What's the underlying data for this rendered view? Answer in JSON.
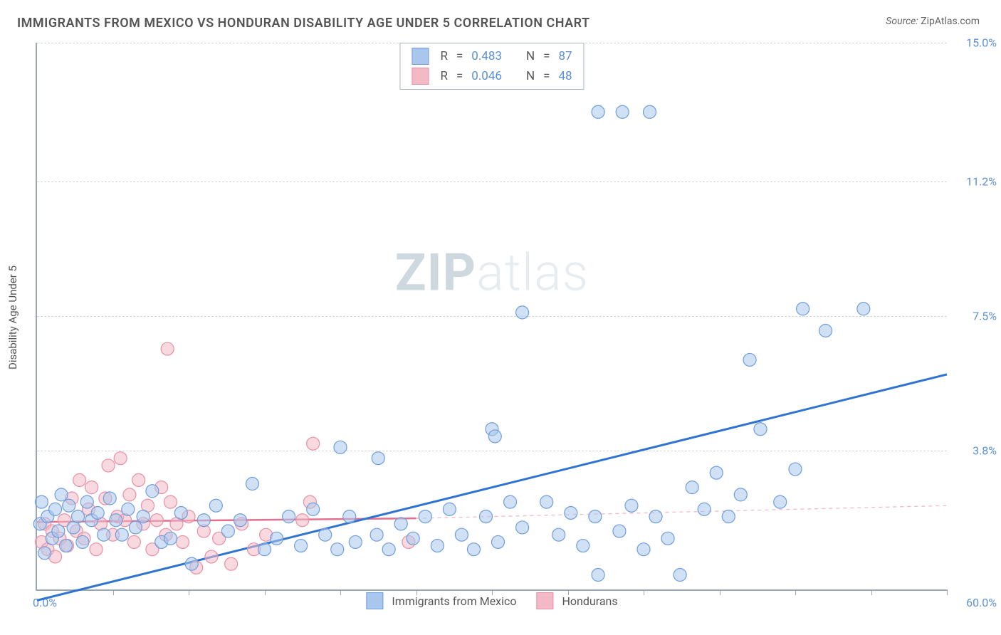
{
  "title": "IMMIGRANTS FROM MEXICO VS HONDURAN DISABILITY AGE UNDER 5 CORRELATION CHART",
  "source_label": "Source:",
  "source_value": "ZipAtlas.com",
  "ylabel": "Disability Age Under 5",
  "watermark_bold": "ZIP",
  "watermark_light": "atlas",
  "chart": {
    "type": "scatter-with-regression",
    "background_color": "#ffffff",
    "axis_color": "#9aa6b2",
    "grid_color": "#d0d5da",
    "xlim": [
      0,
      60
    ],
    "ylim": [
      0,
      15
    ],
    "xlimit_labels": [
      "0.0%",
      "60.0%"
    ],
    "ytick_values": [
      3.8,
      7.5,
      11.2,
      15.0
    ],
    "ytick_labels": [
      "3.8%",
      "7.5%",
      "11.2%",
      "15.0%"
    ],
    "xtick_values": [
      5,
      10,
      15,
      20,
      25,
      30,
      35,
      40,
      45,
      50,
      55,
      60
    ],
    "tick_label_color": "#5b8fd6",
    "label_color": "#555555",
    "marker_radius": 9,
    "marker_stroke_width": 1.2,
    "marker_opacity": 0.55,
    "series": [
      {
        "name": "Immigrants from Mexico",
        "fill_color": "#a9c6ec",
        "stroke_color": "#6f9ddb",
        "R": "0.483",
        "N": "87",
        "regression": {
          "x1": 0,
          "y1": -0.3,
          "x2": 60,
          "y2": 5.9,
          "width": 3,
          "dash": "none",
          "color": "#2f74d0"
        },
        "points": [
          [
            0.2,
            1.8
          ],
          [
            0.3,
            2.4
          ],
          [
            0.5,
            1.0
          ],
          [
            0.7,
            2.0
          ],
          [
            1.0,
            1.4
          ],
          [
            1.2,
            2.2
          ],
          [
            1.4,
            1.6
          ],
          [
            1.6,
            2.6
          ],
          [
            1.9,
            1.2
          ],
          [
            2.1,
            2.3
          ],
          [
            2.4,
            1.7
          ],
          [
            2.7,
            2.0
          ],
          [
            3.0,
            1.3
          ],
          [
            3.3,
            2.4
          ],
          [
            3.6,
            1.9
          ],
          [
            4.0,
            2.1
          ],
          [
            4.4,
            1.5
          ],
          [
            4.8,
            2.5
          ],
          [
            5.2,
            1.9
          ],
          [
            5.6,
            1.5
          ],
          [
            6.0,
            2.2
          ],
          [
            6.5,
            1.7
          ],
          [
            7.0,
            2.0
          ],
          [
            7.6,
            2.7
          ],
          [
            8.2,
            1.3
          ],
          [
            8.8,
            1.4
          ],
          [
            9.5,
            2.1
          ],
          [
            10.2,
            0.7
          ],
          [
            11.0,
            1.9
          ],
          [
            11.8,
            2.3
          ],
          [
            12.6,
            1.6
          ],
          [
            13.4,
            1.9
          ],
          [
            14.2,
            2.9
          ],
          [
            15.0,
            1.1
          ],
          [
            15.8,
            1.4
          ],
          [
            16.6,
            2.0
          ],
          [
            17.4,
            1.2
          ],
          [
            18.2,
            2.2
          ],
          [
            19.0,
            1.5
          ],
          [
            19.8,
            1.1
          ],
          [
            20.6,
            2.0
          ],
          [
            20.0,
            3.9
          ],
          [
            21.0,
            1.3
          ],
          [
            22.4,
            1.5
          ],
          [
            22.5,
            3.6
          ],
          [
            23.2,
            1.1
          ],
          [
            24.0,
            1.8
          ],
          [
            24.8,
            1.4
          ],
          [
            25.6,
            2.0
          ],
          [
            26.4,
            1.2
          ],
          [
            27.2,
            2.2
          ],
          [
            28.0,
            1.5
          ],
          [
            28.8,
            1.1
          ],
          [
            29.6,
            2.0
          ],
          [
            30.4,
            1.3
          ],
          [
            30.0,
            4.4
          ],
          [
            30.2,
            4.2
          ],
          [
            31.2,
            2.4
          ],
          [
            32.0,
            7.6
          ],
          [
            32.0,
            1.7
          ],
          [
            33.6,
            2.4
          ],
          [
            34.4,
            1.5
          ],
          [
            35.2,
            2.1
          ],
          [
            36.0,
            1.2
          ],
          [
            36.8,
            2.0
          ],
          [
            37.0,
            0.4
          ],
          [
            37.0,
            13.1
          ],
          [
            38.4,
            1.6
          ],
          [
            38.6,
            13.1
          ],
          [
            39.2,
            2.3
          ],
          [
            40.0,
            1.1
          ],
          [
            40.4,
            13.1
          ],
          [
            40.8,
            2.0
          ],
          [
            41.6,
            1.4
          ],
          [
            42.4,
            0.4
          ],
          [
            43.2,
            2.8
          ],
          [
            44.0,
            2.2
          ],
          [
            44.8,
            3.2
          ],
          [
            45.6,
            2.0
          ],
          [
            46.4,
            2.6
          ],
          [
            47.0,
            6.3
          ],
          [
            47.7,
            4.4
          ],
          [
            49.0,
            2.4
          ],
          [
            50.0,
            3.3
          ],
          [
            50.5,
            7.7
          ],
          [
            52.0,
            7.1
          ],
          [
            54.5,
            7.7
          ]
        ]
      },
      {
        "name": "Hondurans",
        "fill_color": "#f3b9c6",
        "stroke_color": "#e98fa5",
        "R": "0.046",
        "N": "48",
        "regression_solid": {
          "x1": 0,
          "y1": 1.85,
          "x2": 25,
          "y2": 1.95,
          "width": 2.5,
          "color": "#e66f8f"
        },
        "regression_dash": {
          "x1": 25,
          "y1": 1.95,
          "x2": 60,
          "y2": 2.3,
          "width": 1.3,
          "dash": "5,5",
          "color": "#f3b9c6"
        },
        "points": [
          [
            0.3,
            1.3
          ],
          [
            0.5,
            1.8
          ],
          [
            0.7,
            1.1
          ],
          [
            1.0,
            1.6
          ],
          [
            1.2,
            0.9
          ],
          [
            1.5,
            1.4
          ],
          [
            1.8,
            1.9
          ],
          [
            2.0,
            1.2
          ],
          [
            2.3,
            2.5
          ],
          [
            2.6,
            1.6
          ],
          [
            2.8,
            3.0
          ],
          [
            3.1,
            1.4
          ],
          [
            3.4,
            2.2
          ],
          [
            3.6,
            2.8
          ],
          [
            3.9,
            1.1
          ],
          [
            4.2,
            1.8
          ],
          [
            4.5,
            2.5
          ],
          [
            4.7,
            3.4
          ],
          [
            5.0,
            1.5
          ],
          [
            5.3,
            2.0
          ],
          [
            5.5,
            3.6
          ],
          [
            5.8,
            1.9
          ],
          [
            6.1,
            2.6
          ],
          [
            6.4,
            1.3
          ],
          [
            6.7,
            3.0
          ],
          [
            7.0,
            1.8
          ],
          [
            7.3,
            2.3
          ],
          [
            7.6,
            1.1
          ],
          [
            7.9,
            1.9
          ],
          [
            8.2,
            2.8
          ],
          [
            8.5,
            1.5
          ],
          [
            8.8,
            2.4
          ],
          [
            8.6,
            6.6
          ],
          [
            9.2,
            1.8
          ],
          [
            9.6,
            1.3
          ],
          [
            10.0,
            2.0
          ],
          [
            10.5,
            0.6
          ],
          [
            11.0,
            1.6
          ],
          [
            11.5,
            0.9
          ],
          [
            12.0,
            1.4
          ],
          [
            12.8,
            0.7
          ],
          [
            13.5,
            1.8
          ],
          [
            14.3,
            1.1
          ],
          [
            15.1,
            1.5
          ],
          [
            17.5,
            1.9
          ],
          [
            18.0,
            2.4
          ],
          [
            18.2,
            4.0
          ],
          [
            24.5,
            1.3
          ]
        ]
      }
    ],
    "stats_labels": {
      "R": "R",
      "eq": "=",
      "N": "N"
    },
    "bottom_legend": [
      {
        "label": "Immigrants from Mexico",
        "fill": "#a9c6ec",
        "stroke": "#6f9ddb"
      },
      {
        "label": "Hondurans",
        "fill": "#f3b9c6",
        "stroke": "#e98fa5"
      }
    ]
  }
}
